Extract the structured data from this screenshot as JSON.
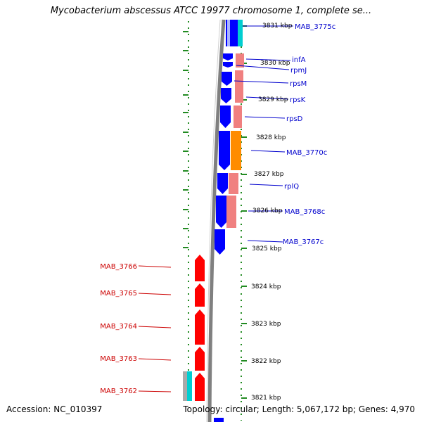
{
  "title": "Mycobacterium abscessus ATCC 19977 chromosome 1, complete se...",
  "footer": {
    "accession": "Accession: NC_010397",
    "summary": "Topology: circular; Length: 5,067,172 bp; Genes: 4,970"
  },
  "colors": {
    "forward_gene": "#ff0000",
    "reverse_gene": "#0000ff",
    "ribosomal_pink": "#f08080",
    "orange_feature": "#ff8c00",
    "cyan_feature": "#00ced1",
    "scale_tick": "#228b22",
    "backbone": "#808080"
  },
  "scale_labels": [
    "3831 kbp",
    "3830 kbp",
    "3829 kbp",
    "3828 kbp",
    "3827 kbp",
    "3826 kbp",
    "3825 kbp",
    "3824 kbp",
    "3823 kbp",
    "3822 kbp",
    "3821 kbp"
  ],
  "right_genes": [
    "MAB_3775c",
    "infA",
    "rpmJ",
    "rpsM",
    "rpsK",
    "rpsD",
    "MAB_3770c",
    "rplQ",
    "MAB_3768c",
    "MAB_3767c"
  ],
  "left_genes": [
    "MAB_3766",
    "MAB_3765",
    "MAB_3764",
    "MAB_3763",
    "MAB_3762"
  ]
}
